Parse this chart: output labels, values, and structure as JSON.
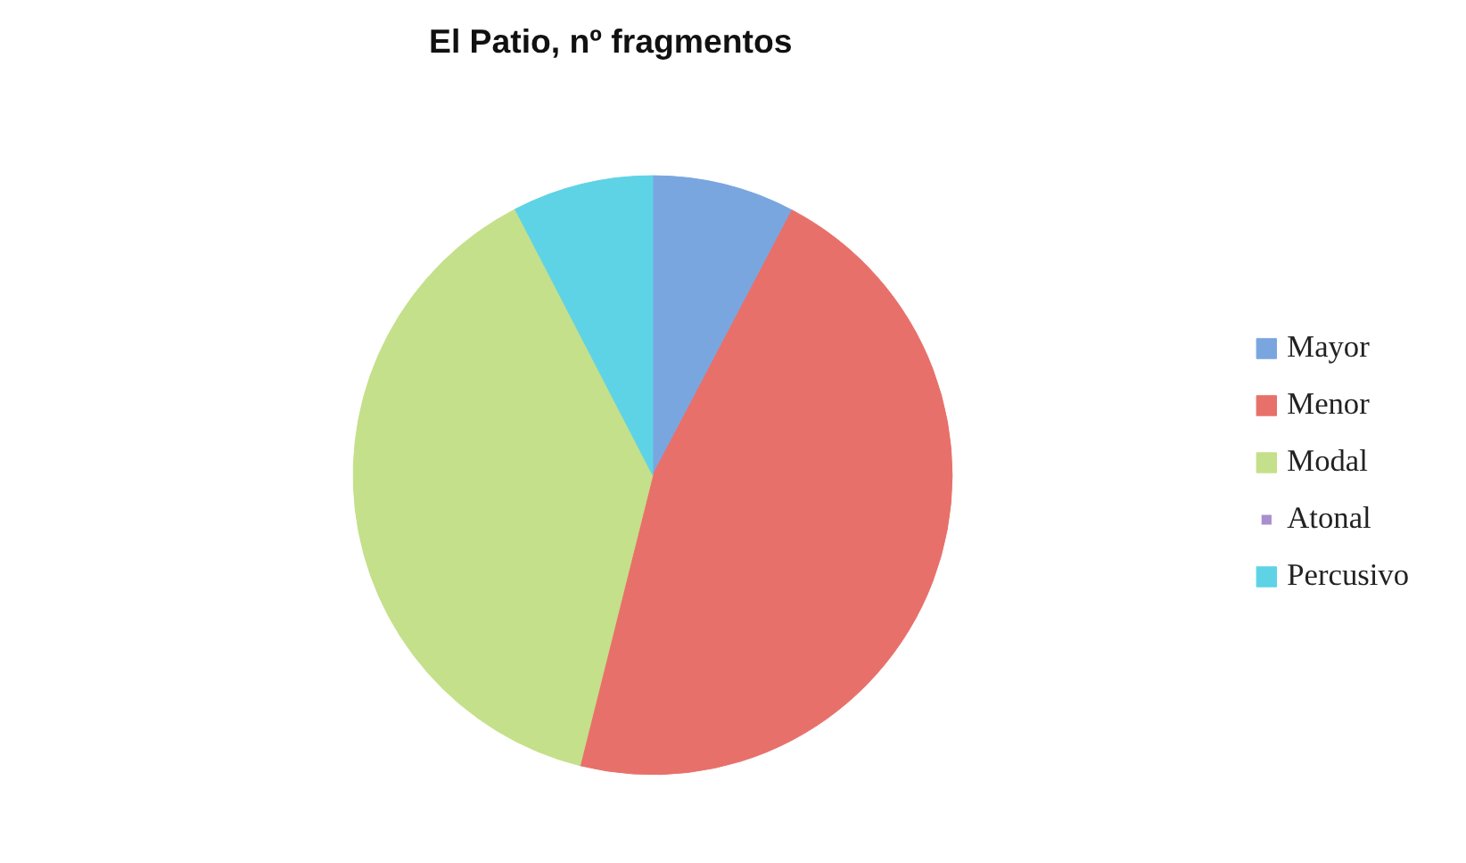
{
  "chart_data": {
    "type": "pie",
    "title": "El Patio, nº fragmentos",
    "categories": [
      "Mayor",
      "Menor",
      "Modal",
      "Atonal",
      "Percusivo"
    ],
    "values": [
      7.7,
      46.2,
      38.5,
      0,
      7.6
    ],
    "colors": [
      "#7aa6e0",
      "#e8706a",
      "#c4e08a",
      "#a98fd0",
      "#5fd3e6"
    ],
    "legend": "right"
  }
}
